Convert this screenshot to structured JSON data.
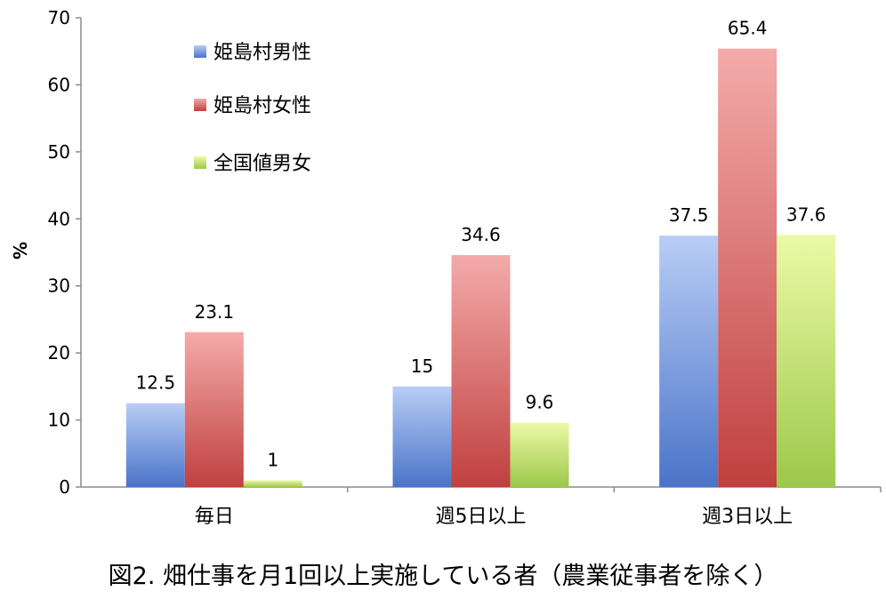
{
  "caption": "図2. 畑仕事を月1回以上実施している者（農業従事者を除く）",
  "chart_data": {
    "type": "bar",
    "ylabel": "%",
    "xlabel": "",
    "ylim": [
      0,
      70
    ],
    "yticks": [
      0,
      10,
      20,
      30,
      40,
      50,
      60,
      70
    ],
    "grid": false,
    "legend_position": "top-left",
    "categories": [
      "毎日",
      "週5日以上",
      "週3日以上"
    ],
    "series": [
      {
        "name": "姫島村男性",
        "values": [
          12.5,
          15,
          37.5
        ],
        "labels": [
          "12.5",
          "15",
          "37.5"
        ],
        "color": "#7a9ee0",
        "color_light": "#b9cdf5",
        "color_dark": "#4a74c9"
      },
      {
        "name": "姫島村女性",
        "values": [
          23.1,
          34.6,
          65.4
        ],
        "labels": [
          "23.1",
          "34.6",
          "65.4"
        ],
        "color": "#d9696a",
        "color_light": "#f3abaa",
        "color_dark": "#c0403f"
      },
      {
        "name": "全国値男女",
        "values": [
          1,
          9.6,
          37.6
        ],
        "labels": [
          "1",
          "9.6",
          "37.6"
        ],
        "color": "#b9dc69",
        "color_light": "#ecfaa6",
        "color_dark": "#9cc84a"
      }
    ]
  }
}
